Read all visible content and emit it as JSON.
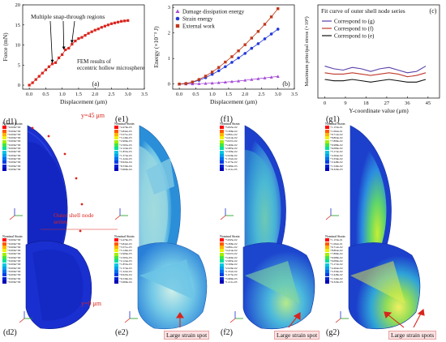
{
  "colors": {
    "panel_a_series": "#d9241c",
    "damage": "#a64bd6",
    "strain": "#2438d8",
    "external": "#c0391a",
    "curve_g": "#5a3ea8",
    "curve_f": "#c0392b",
    "curve_e": "#111111",
    "model_blue": "#1a2fd0",
    "annotation_red": "#d9241c"
  },
  "panel_a": {
    "label": "(a)",
    "ylabel": "Force (mN)",
    "xlabel": "Displacement (μm)",
    "annotation_snap": "Multiple snap-through regions",
    "annotation_fem": "FEM results of eccentric hollow microsphere",
    "xticks": [
      "0.0",
      "0.5",
      "1.0",
      "1.5",
      "2.0",
      "2.5",
      "3.0",
      "3.5"
    ],
    "yticks": [
      "0",
      "5",
      "10",
      "15",
      "20"
    ]
  },
  "panel_b": {
    "label": "(b)",
    "ylabel": "Energy (×10⁻³ J)",
    "xlabel": "Displacement (μm)",
    "xticks": [
      "0.0",
      "0.5",
      "1.0",
      "1.5",
      "2.0",
      "2.5",
      "3.0",
      "3.5"
    ],
    "yticks": [
      "0",
      "1",
      "2",
      "3"
    ],
    "legend": [
      "Damage dissipation energy",
      "Strain energy",
      "External work"
    ]
  },
  "panel_c": {
    "label": "(c)",
    "title": "Fit curve of outer shell node series",
    "ylabel": "Maximum principal stress (×10⁴)",
    "xlabel": "Y-coordinate value (μm)",
    "xticks": [
      "0",
      "9",
      "18",
      "27",
      "36",
      "45"
    ],
    "legend": [
      "Correspond to (g)",
      "Correspond to (f)",
      "Correspond to (e)"
    ]
  },
  "chart_data": [
    {
      "type": "scatter",
      "title": "",
      "xlabel": "Displacement (μm)",
      "ylabel": "Force (mN)",
      "xlim": [
        -0.2,
        3.5
      ],
      "ylim": [
        -1,
        20
      ],
      "x": [
        0,
        0.1,
        0.2,
        0.3,
        0.4,
        0.5,
        0.6,
        0.7,
        0.8,
        0.9,
        1.0,
        1.1,
        1.2,
        1.3,
        1.4,
        1.5,
        1.6,
        1.7,
        1.8,
        1.9,
        2.0,
        2.1,
        2.2,
        2.3,
        2.4,
        2.5,
        2.6,
        2.7,
        2.8,
        2.9,
        3.0
      ],
      "y": [
        0,
        0.6,
        1.4,
        2.2,
        3.0,
        3.8,
        4.6,
        5.3,
        5.6,
        6.8,
        7.6,
        8.8,
        9.2,
        10.2,
        11.0,
        11.6,
        11.9,
        12.4,
        12.9,
        13.3,
        13.7,
        14.0,
        14.4,
        14.7,
        15.0,
        15.3,
        15.5,
        15.7,
        15.9,
        16.0,
        16.1
      ]
    },
    {
      "type": "line",
      "title": "",
      "xlabel": "Displacement (μm)",
      "ylabel": "Energy (×10⁻³ J)",
      "xlim": [
        -0.2,
        3.5
      ],
      "ylim": [
        -0.2,
        3.1
      ],
      "x": [
        0,
        0.2,
        0.4,
        0.6,
        0.8,
        1.0,
        1.2,
        1.4,
        1.6,
        1.8,
        2.0,
        2.2,
        2.4,
        2.6,
        2.8,
        3.0
      ],
      "series": [
        {
          "name": "Damage dissipation energy",
          "values": [
            0,
            0.003,
            0.008,
            0.015,
            0.025,
            0.038,
            0.055,
            0.075,
            0.098,
            0.12,
            0.15,
            0.18,
            0.21,
            0.24,
            0.27,
            0.3
          ]
        },
        {
          "name": "Strain energy",
          "values": [
            0,
            0.02,
            0.07,
            0.15,
            0.25,
            0.38,
            0.52,
            0.68,
            0.85,
            1.02,
            1.2,
            1.4,
            1.58,
            1.77,
            1.96,
            2.15
          ]
        },
        {
          "name": "External work",
          "values": [
            0,
            0.02,
            0.08,
            0.18,
            0.31,
            0.47,
            0.65,
            0.86,
            1.07,
            1.3,
            1.54,
            1.8,
            2.06,
            2.34,
            2.63,
            2.95
          ]
        }
      ]
    },
    {
      "type": "line",
      "title": "Fit curve of outer shell node series",
      "xlabel": "Y-coordinate value (μm)",
      "ylabel": "Maximum principal stress (×10⁴)",
      "xlim": [
        -3,
        50
      ],
      "ylim": [
        -0.1,
        0.6
      ],
      "x": [
        0,
        4,
        8,
        12,
        16,
        20,
        24,
        28,
        32,
        36,
        40,
        44
      ],
      "series": [
        {
          "name": "Correspond to (g)",
          "values": [
            0.14,
            0.12,
            0.11,
            0.13,
            0.12,
            0.1,
            0.12,
            0.13,
            0.11,
            0.09,
            0.1,
            0.14
          ]
        },
        {
          "name": "Correspond to (f)",
          "values": [
            0.09,
            0.08,
            0.08,
            0.09,
            0.08,
            0.07,
            0.08,
            0.09,
            0.08,
            0.06,
            0.07,
            0.09
          ]
        },
        {
          "name": "Correspond to (e)",
          "values": [
            0.04,
            0.03,
            0.03,
            0.04,
            0.03,
            0.02,
            0.03,
            0.04,
            0.03,
            0.02,
            0.02,
            0.04
          ]
        }
      ]
    }
  ],
  "fem": {
    "legend_title": "Nominal Strain",
    "d1_label": "(d1)",
    "e1_label": "(e1)",
    "f1_label": "(f1)",
    "g1_label": "(g1)",
    "d2_label": "(d2)",
    "e2_label": "(e2)",
    "f2_label": "(f2)",
    "g2_label": "(g2)",
    "y45": "y=45 μm",
    "y0": "y=0 μm",
    "node_series": "Outer shell node series",
    "spot_e2": "Large strain spot",
    "spot_f2": "Large strain spot",
    "spot_g2": "Large strain spots",
    "legend_values_d": [
      "+0.000e+00",
      "+0.000e+00",
      "+0.000e+00",
      "+0.000e+00",
      "+0.000e+00",
      "+0.000e+00",
      "+0.000e+00",
      "+0.000e+00",
      "+0.000e+00",
      "+0.000e+00",
      "+0.000e+00",
      "+0.000e+00",
      "+0.000e+00"
    ],
    "legend_values_e": [
      "+4.476e-03",
      "+3.842e-03",
      "+3.571e-03",
      "+3.140e-03",
      "+2.906e-03",
      "+2.565e-03",
      "+2.124e-03",
      "+1.855e-03",
      "+1.574e-03",
      "+1.222e-03",
      "+9.943e-04",
      "+6.539e-04",
      "+3.669e-04"
    ],
    "legend_values_f": [
      "+5.845e-02",
      "+5.368e-02",
      "+4.891e-02",
      "+4.414e-02",
      "+3.937e-02",
      "+3.460e-02",
      "+2.983e-02",
      "+2.506e-02",
      "+2.029e-02",
      "+1.552e-02",
      "+1.075e-02",
      "+5.980e-03",
      "+1.211e-03"
    ],
    "legend_values_g": [
      "+1.153e-01",
      "+1.062e-01",
      "+9.712e-02",
      "+8.804e-02",
      "+7.896e-02",
      "+6.988e-02",
      "+6.080e-02",
      "+5.172e-02",
      "+4.264e-02",
      "+3.356e-02",
      "+2.448e-02",
      "+1.540e-02",
      "+6.320e-03"
    ]
  }
}
